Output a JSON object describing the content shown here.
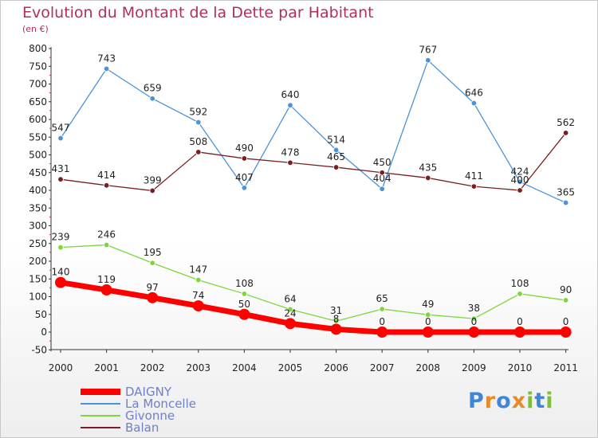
{
  "title": "Evolution du Montant de la Dette par Habitant",
  "unit": "(en €)",
  "chart_data": {
    "type": "line",
    "title": "Evolution du Montant de la Dette par Habitant",
    "ylabel": "(en €)",
    "xlabel": "",
    "x": [
      "2000",
      "2001",
      "2002",
      "2003",
      "2004",
      "2005",
      "2006",
      "2007",
      "2008",
      "2009",
      "2010",
      "2011"
    ],
    "ylim": [
      -50,
      800
    ],
    "yticks": [
      -50,
      0,
      50,
      100,
      150,
      200,
      250,
      300,
      350,
      400,
      450,
      500,
      550,
      600,
      650,
      700,
      750,
      800
    ],
    "grid": false,
    "legend_position": "bottom-left",
    "series": [
      {
        "name": "DAIGNY",
        "color": "#ff0000",
        "values": [
          140,
          119,
          97,
          74,
          50,
          24,
          8,
          0,
          0,
          0,
          0,
          0
        ]
      },
      {
        "name": "La Moncelle",
        "color": "#4b92d6",
        "values": [
          547,
          743,
          659,
          592,
          407,
          640,
          514,
          404,
          767,
          646,
          424,
          365
        ]
      },
      {
        "name": "Givonne",
        "color": "#7ed63e",
        "values": [
          239,
          246,
          195,
          147,
          108,
          64,
          31,
          65,
          49,
          38,
          108,
          90
        ]
      },
      {
        "name": "Balan",
        "color": "#7a1f1f",
        "values": [
          431,
          414,
          399,
          508,
          490,
          478,
          465,
          450,
          435,
          411,
          400,
          562
        ]
      }
    ]
  },
  "logo": {
    "text": "Proxiti",
    "letters": [
      "P",
      "r",
      "o",
      "x",
      "i",
      "t",
      "i"
    ],
    "colors": [
      "#3f86d8",
      "#e88a25",
      "#3f86d8",
      "#e88a25",
      "#7dbf3a",
      "#3f86d8",
      "#7dbf3a"
    ]
  }
}
